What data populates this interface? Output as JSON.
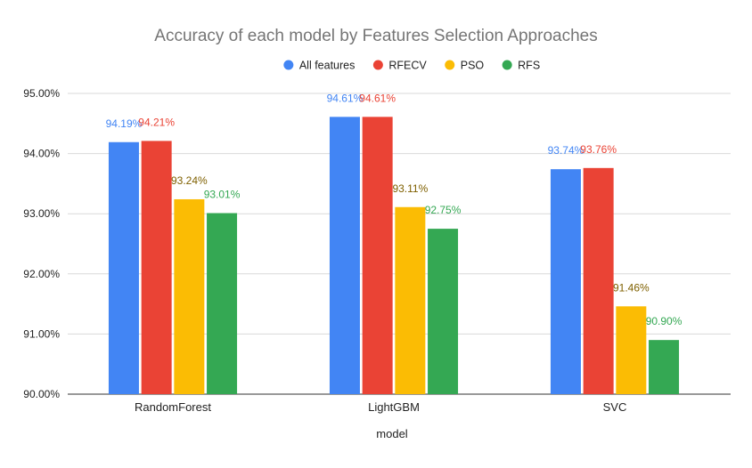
{
  "chart_data": {
    "type": "bar",
    "title": "Accuracy of each model by Features Selection Approaches",
    "xlabel": "model",
    "ylabel": "",
    "categories": [
      "RandomForest",
      "LightGBM",
      "SVC"
    ],
    "ylim": [
      90,
      95
    ],
    "yticks": [
      90,
      91,
      92,
      93,
      94,
      95
    ],
    "ytick_labels": [
      "90.00%",
      "91.00%",
      "92.00%",
      "93.00%",
      "94.00%",
      "95.00%"
    ],
    "grid": true,
    "legend_position": "top-center",
    "series": [
      {
        "name": "All features",
        "color": "#4285F4",
        "values": [
          94.19,
          94.61,
          93.74
        ],
        "labels": [
          "94.19%",
          "94.61%",
          "93.74%"
        ]
      },
      {
        "name": "RFECV",
        "color": "#EA4335",
        "values": [
          94.21,
          94.61,
          93.76
        ],
        "labels": [
          "94.21%",
          "94.61%",
          "93.76%"
        ]
      },
      {
        "name": "PSO",
        "color": "#FBBC04",
        "label_color": "#7F6000",
        "values": [
          93.24,
          93.11,
          91.46
        ],
        "labels": [
          "93.24%",
          "93.11%",
          "91.46%"
        ]
      },
      {
        "name": "RFS",
        "color": "#34A853",
        "values": [
          93.01,
          92.75,
          90.9
        ],
        "labels": [
          "93.01%",
          "92.75%",
          "90.90%"
        ]
      }
    ]
  }
}
